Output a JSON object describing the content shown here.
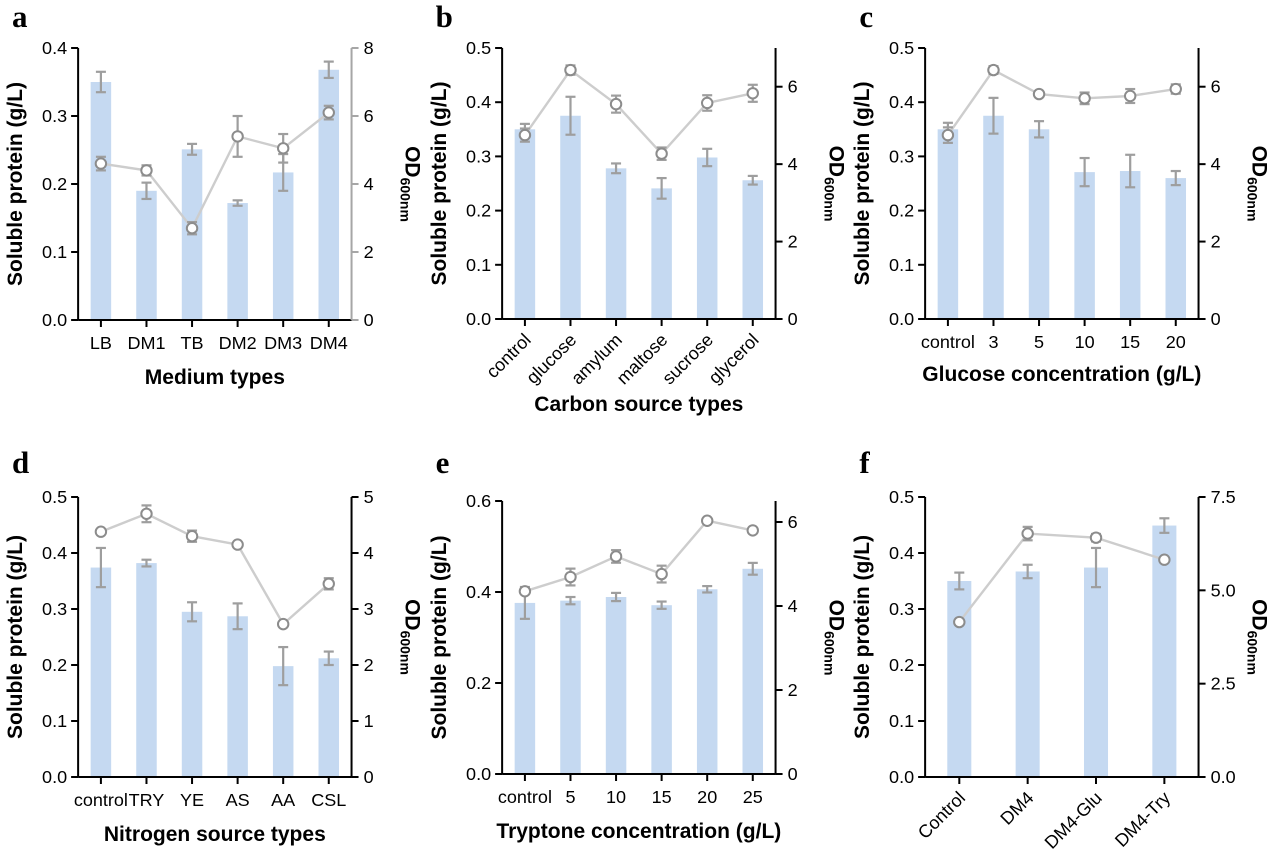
{
  "figure": {
    "background": "#ffffff",
    "shared": {
      "od_label_main": "OD",
      "od_label_sub": "600nm",
      "protein_axis_label": "Soluble protein (g/L)"
    },
    "colors": {
      "bar_fill": "#c5d9f1",
      "error_bar": "#9e9e9e",
      "line": "#cdcdcd",
      "marker_stroke": "#8c8c8c",
      "marker_fill": "#ffffff",
      "axis": "#000000",
      "panel_a_right_axis": "#a6a6a6",
      "text": "#000000"
    }
  },
  "chart_data": [
    {
      "letter": "a",
      "type": "bar+line",
      "xlabel": "Medium types",
      "ylabel_left": "Soluble protein (g/L)",
      "ylabel_right": "OD600nm",
      "categories": [
        "LB",
        "DM1",
        "TB",
        "DM2",
        "DM3",
        "DM4"
      ],
      "rotated_xticks": false,
      "left_axis": {
        "min": 0,
        "max": 0.4,
        "ticks": [
          0,
          0.1,
          0.2,
          0.3,
          0.4
        ],
        "decimals": 1
      },
      "right_axis": {
        "min": 0,
        "max": 8,
        "ticks": [
          0,
          2,
          4,
          6,
          8
        ],
        "decimals": 0
      },
      "right_axis_color": "#a6a6a6",
      "series": [
        {
          "name": "Soluble protein (g/L)",
          "type": "bar",
          "axis": "left",
          "values": [
            0.35,
            0.19,
            0.251,
            0.172,
            0.217,
            0.368
          ],
          "errors": [
            0.015,
            0.012,
            0.008,
            0.004,
            0.027,
            0.012
          ]
        },
        {
          "name": "OD600nm",
          "type": "line",
          "axis": "right",
          "values": [
            4.6,
            4.4,
            2.7,
            5.4,
            5.05,
            6.1
          ],
          "errors": [
            0.2,
            0.15,
            0.18,
            0.6,
            0.42,
            0.2
          ]
        }
      ]
    },
    {
      "letter": "b",
      "type": "bar+line",
      "xlabel": "Carbon source types",
      "ylabel_left": "Soluble protein (g/L)",
      "ylabel_right": "OD600nm",
      "categories": [
        "control",
        "glucose",
        "amylum",
        "maltose",
        "sucrose",
        "glycerol"
      ],
      "rotated_xticks": true,
      "left_axis": {
        "min": 0,
        "max": 0.5,
        "ticks": [
          0,
          0.1,
          0.2,
          0.3,
          0.4,
          0.5
        ],
        "decimals": 1
      },
      "right_axis": {
        "min": 0,
        "max": 7,
        "ticks": [
          0,
          2,
          4,
          6
        ],
        "decimals": 0
      },
      "series": [
        {
          "name": "Soluble protein (g/L)",
          "type": "bar",
          "axis": "left",
          "values": [
            0.35,
            0.375,
            0.278,
            0.241,
            0.298,
            0.256
          ],
          "errors": [
            0.01,
            0.035,
            0.009,
            0.019,
            0.016,
            0.008
          ]
        },
        {
          "name": "OD600nm",
          "type": "line",
          "axis": "right",
          "values": [
            4.75,
            6.43,
            5.55,
            4.27,
            5.58,
            5.83
          ],
          "errors": [
            0.17,
            0.12,
            0.22,
            0.16,
            0.2,
            0.22
          ]
        }
      ]
    },
    {
      "letter": "c",
      "type": "bar+line",
      "xlabel": "Glucose concentration (g/L)",
      "ylabel_left": "Soluble protein (g/L)",
      "ylabel_right": "OD600nm",
      "categories": [
        "control",
        "3",
        "5",
        "10",
        "15",
        "20"
      ],
      "rotated_xticks": false,
      "left_axis": {
        "min": 0,
        "max": 0.5,
        "ticks": [
          0,
          0.1,
          0.2,
          0.3,
          0.4,
          0.5
        ],
        "decimals": 1
      },
      "right_axis": {
        "min": 0,
        "max": 7,
        "ticks": [
          0,
          2,
          4,
          6
        ],
        "decimals": 0
      },
      "series": [
        {
          "name": "Soluble protein (g/L)",
          "type": "bar",
          "axis": "left",
          "values": [
            0.35,
            0.375,
            0.35,
            0.271,
            0.273,
            0.26
          ],
          "errors": [
            0.012,
            0.033,
            0.015,
            0.026,
            0.03,
            0.013
          ]
        },
        {
          "name": "OD600nm",
          "type": "line",
          "axis": "right",
          "values": [
            4.75,
            6.43,
            5.81,
            5.7,
            5.76,
            5.94
          ],
          "errors": [
            0.2,
            0.1,
            0,
            0.15,
            0.18,
            0.12
          ]
        }
      ]
    },
    {
      "letter": "d",
      "type": "bar+line",
      "xlabel": "Nitrogen source types",
      "ylabel_left": "Soluble protein (g/L)",
      "ylabel_right": "OD600nm",
      "categories": [
        "control",
        "TRY",
        "YE",
        "AS",
        "AA",
        "CSL"
      ],
      "rotated_xticks": false,
      "left_axis": {
        "min": 0,
        "max": 0.5,
        "ticks": [
          0,
          0.1,
          0.2,
          0.3,
          0.4,
          0.5
        ],
        "decimals": 1
      },
      "right_axis": {
        "min": 0,
        "max": 5,
        "ticks": [
          0,
          1,
          2,
          3,
          4,
          5
        ],
        "decimals": 0
      },
      "series": [
        {
          "name": "Soluble protein (g/L)",
          "type": "bar",
          "axis": "left",
          "values": [
            0.374,
            0.382,
            0.295,
            0.287,
            0.198,
            0.212
          ],
          "errors": [
            0.035,
            0.006,
            0.017,
            0.023,
            0.034,
            0.012
          ]
        },
        {
          "name": "OD600nm",
          "type": "line",
          "axis": "right",
          "values": [
            4.38,
            4.7,
            4.3,
            4.15,
            2.73,
            3.45
          ],
          "errors": [
            0,
            0.15,
            0.1,
            0,
            0,
            0.1
          ]
        }
      ]
    },
    {
      "letter": "e",
      "type": "bar+line",
      "xlabel": "Tryptone concentration (g/L)",
      "ylabel_left": "Soluble protein (g/L)",
      "ylabel_right": "OD600nm",
      "categories": [
        "control",
        "5",
        "10",
        "15",
        "20",
        "25"
      ],
      "rotated_xticks": false,
      "left_axis": {
        "min": 0,
        "max": 0.6,
        "ticks": [
          0,
          0.2,
          0.4,
          0.6
        ],
        "decimals": 1
      },
      "right_axis": {
        "min": 0,
        "max": 6.5,
        "ticks": [
          0,
          2,
          4,
          6
        ],
        "decimals": 0
      },
      "series": [
        {
          "name": "Soluble protein (g/L)",
          "type": "bar",
          "axis": "left",
          "values": [
            0.376,
            0.381,
            0.389,
            0.371,
            0.406,
            0.451
          ],
          "errors": [
            0.035,
            0.008,
            0.009,
            0.008,
            0.007,
            0.013
          ]
        },
        {
          "name": "OD600nm",
          "type": "line",
          "axis": "right",
          "values": [
            4.35,
            4.69,
            5.18,
            4.76,
            6.03,
            5.8
          ],
          "errors": [
            0,
            0.2,
            0.15,
            0.2,
            0,
            0
          ]
        }
      ]
    },
    {
      "letter": "f",
      "type": "bar+line",
      "xlabel": "",
      "ylabel_left": "Soluble protein (g/L)",
      "ylabel_right": "OD600nm",
      "categories": [
        "Control",
        "DM4",
        "DM4-Glu",
        "DM4-Try"
      ],
      "rotated_xticks": true,
      "left_axis": {
        "min": 0,
        "max": 0.5,
        "ticks": [
          0,
          0.1,
          0.2,
          0.3,
          0.4,
          0.5
        ],
        "decimals": 1
      },
      "right_axis": {
        "min": 0,
        "max": 7.5,
        "ticks": [
          0,
          2.5,
          5,
          7.5
        ],
        "decimals": 1
      },
      "series": [
        {
          "name": "Soluble protein (g/L)",
          "type": "bar",
          "axis": "left",
          "values": [
            0.35,
            0.367,
            0.374,
            0.449
          ],
          "errors": [
            0.015,
            0.012,
            0.035,
            0.013
          ]
        },
        {
          "name": "OD600nm",
          "type": "line",
          "axis": "right",
          "values": [
            4.15,
            6.52,
            6.41,
            5.82
          ],
          "errors": [
            0,
            0.18,
            0.1,
            0
          ]
        }
      ]
    }
  ]
}
